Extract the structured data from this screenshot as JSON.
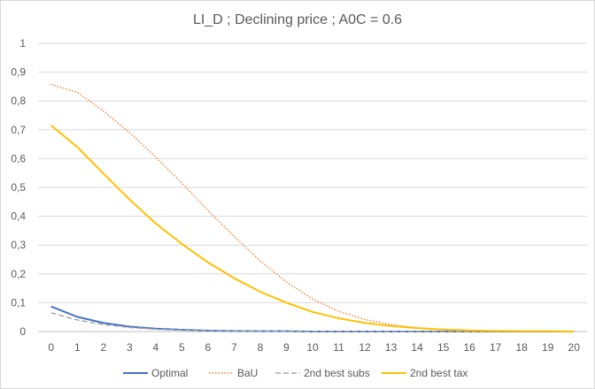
{
  "chart_data": {
    "type": "line",
    "title": "LI_D ; Declining price ; A0C = 0.6",
    "xlabel": "",
    "ylabel": "",
    "x": [
      0,
      1,
      2,
      3,
      4,
      5,
      6,
      7,
      8,
      9,
      10,
      11,
      12,
      13,
      14,
      15,
      16,
      17,
      18,
      19,
      20
    ],
    "ylim": [
      0,
      1
    ],
    "yticks": [
      "0",
      "0,1",
      "0,2",
      "0,3",
      "0,4",
      "0,5",
      "0,6",
      "0,7",
      "0,8",
      "0,9",
      "1"
    ],
    "xticks": [
      "0",
      "1",
      "2",
      "3",
      "4",
      "5",
      "6",
      "7",
      "8",
      "9",
      "10",
      "11",
      "12",
      "13",
      "14",
      "15",
      "16",
      "17",
      "18",
      "19",
      "20"
    ],
    "grid": true,
    "legend_position": "bottom",
    "series": [
      {
        "name": "Optimal",
        "color": "#4472c4",
        "dash": "solid",
        "values": [
          0.087,
          0.051,
          0.03,
          0.017,
          0.01,
          0.006,
          0.003,
          0.002,
          0.001,
          0.001,
          0.0,
          0.0,
          0.0,
          0.0,
          0.0,
          0.0,
          0.0,
          0.0,
          0.0,
          0.0,
          0.0
        ]
      },
      {
        "name": "BaU",
        "color": "#ed7d31",
        "dash": "dotted",
        "values": [
          0.857,
          0.83,
          0.765,
          0.69,
          0.605,
          0.515,
          0.42,
          0.33,
          0.245,
          0.172,
          0.113,
          0.07,
          0.042,
          0.024,
          0.013,
          0.007,
          0.004,
          0.002,
          0.001,
          0.001,
          0.0
        ]
      },
      {
        "name": "2nd best subs",
        "color": "#a5a5a5",
        "dash": "dashed",
        "values": [
          0.065,
          0.04,
          0.024,
          0.014,
          0.008,
          0.005,
          0.003,
          0.002,
          0.001,
          0.001,
          0.0,
          0.0,
          0.0,
          0.0,
          0.0,
          0.0,
          0.0,
          0.0,
          0.0,
          0.0,
          0.0
        ]
      },
      {
        "name": "2nd best tax",
        "color": "#ffc000",
        "dash": "solid",
        "values": [
          0.715,
          0.64,
          0.548,
          0.458,
          0.375,
          0.304,
          0.24,
          0.185,
          0.138,
          0.1,
          0.068,
          0.046,
          0.03,
          0.019,
          0.012,
          0.007,
          0.004,
          0.002,
          0.001,
          0.001,
          0.0
        ]
      }
    ]
  }
}
